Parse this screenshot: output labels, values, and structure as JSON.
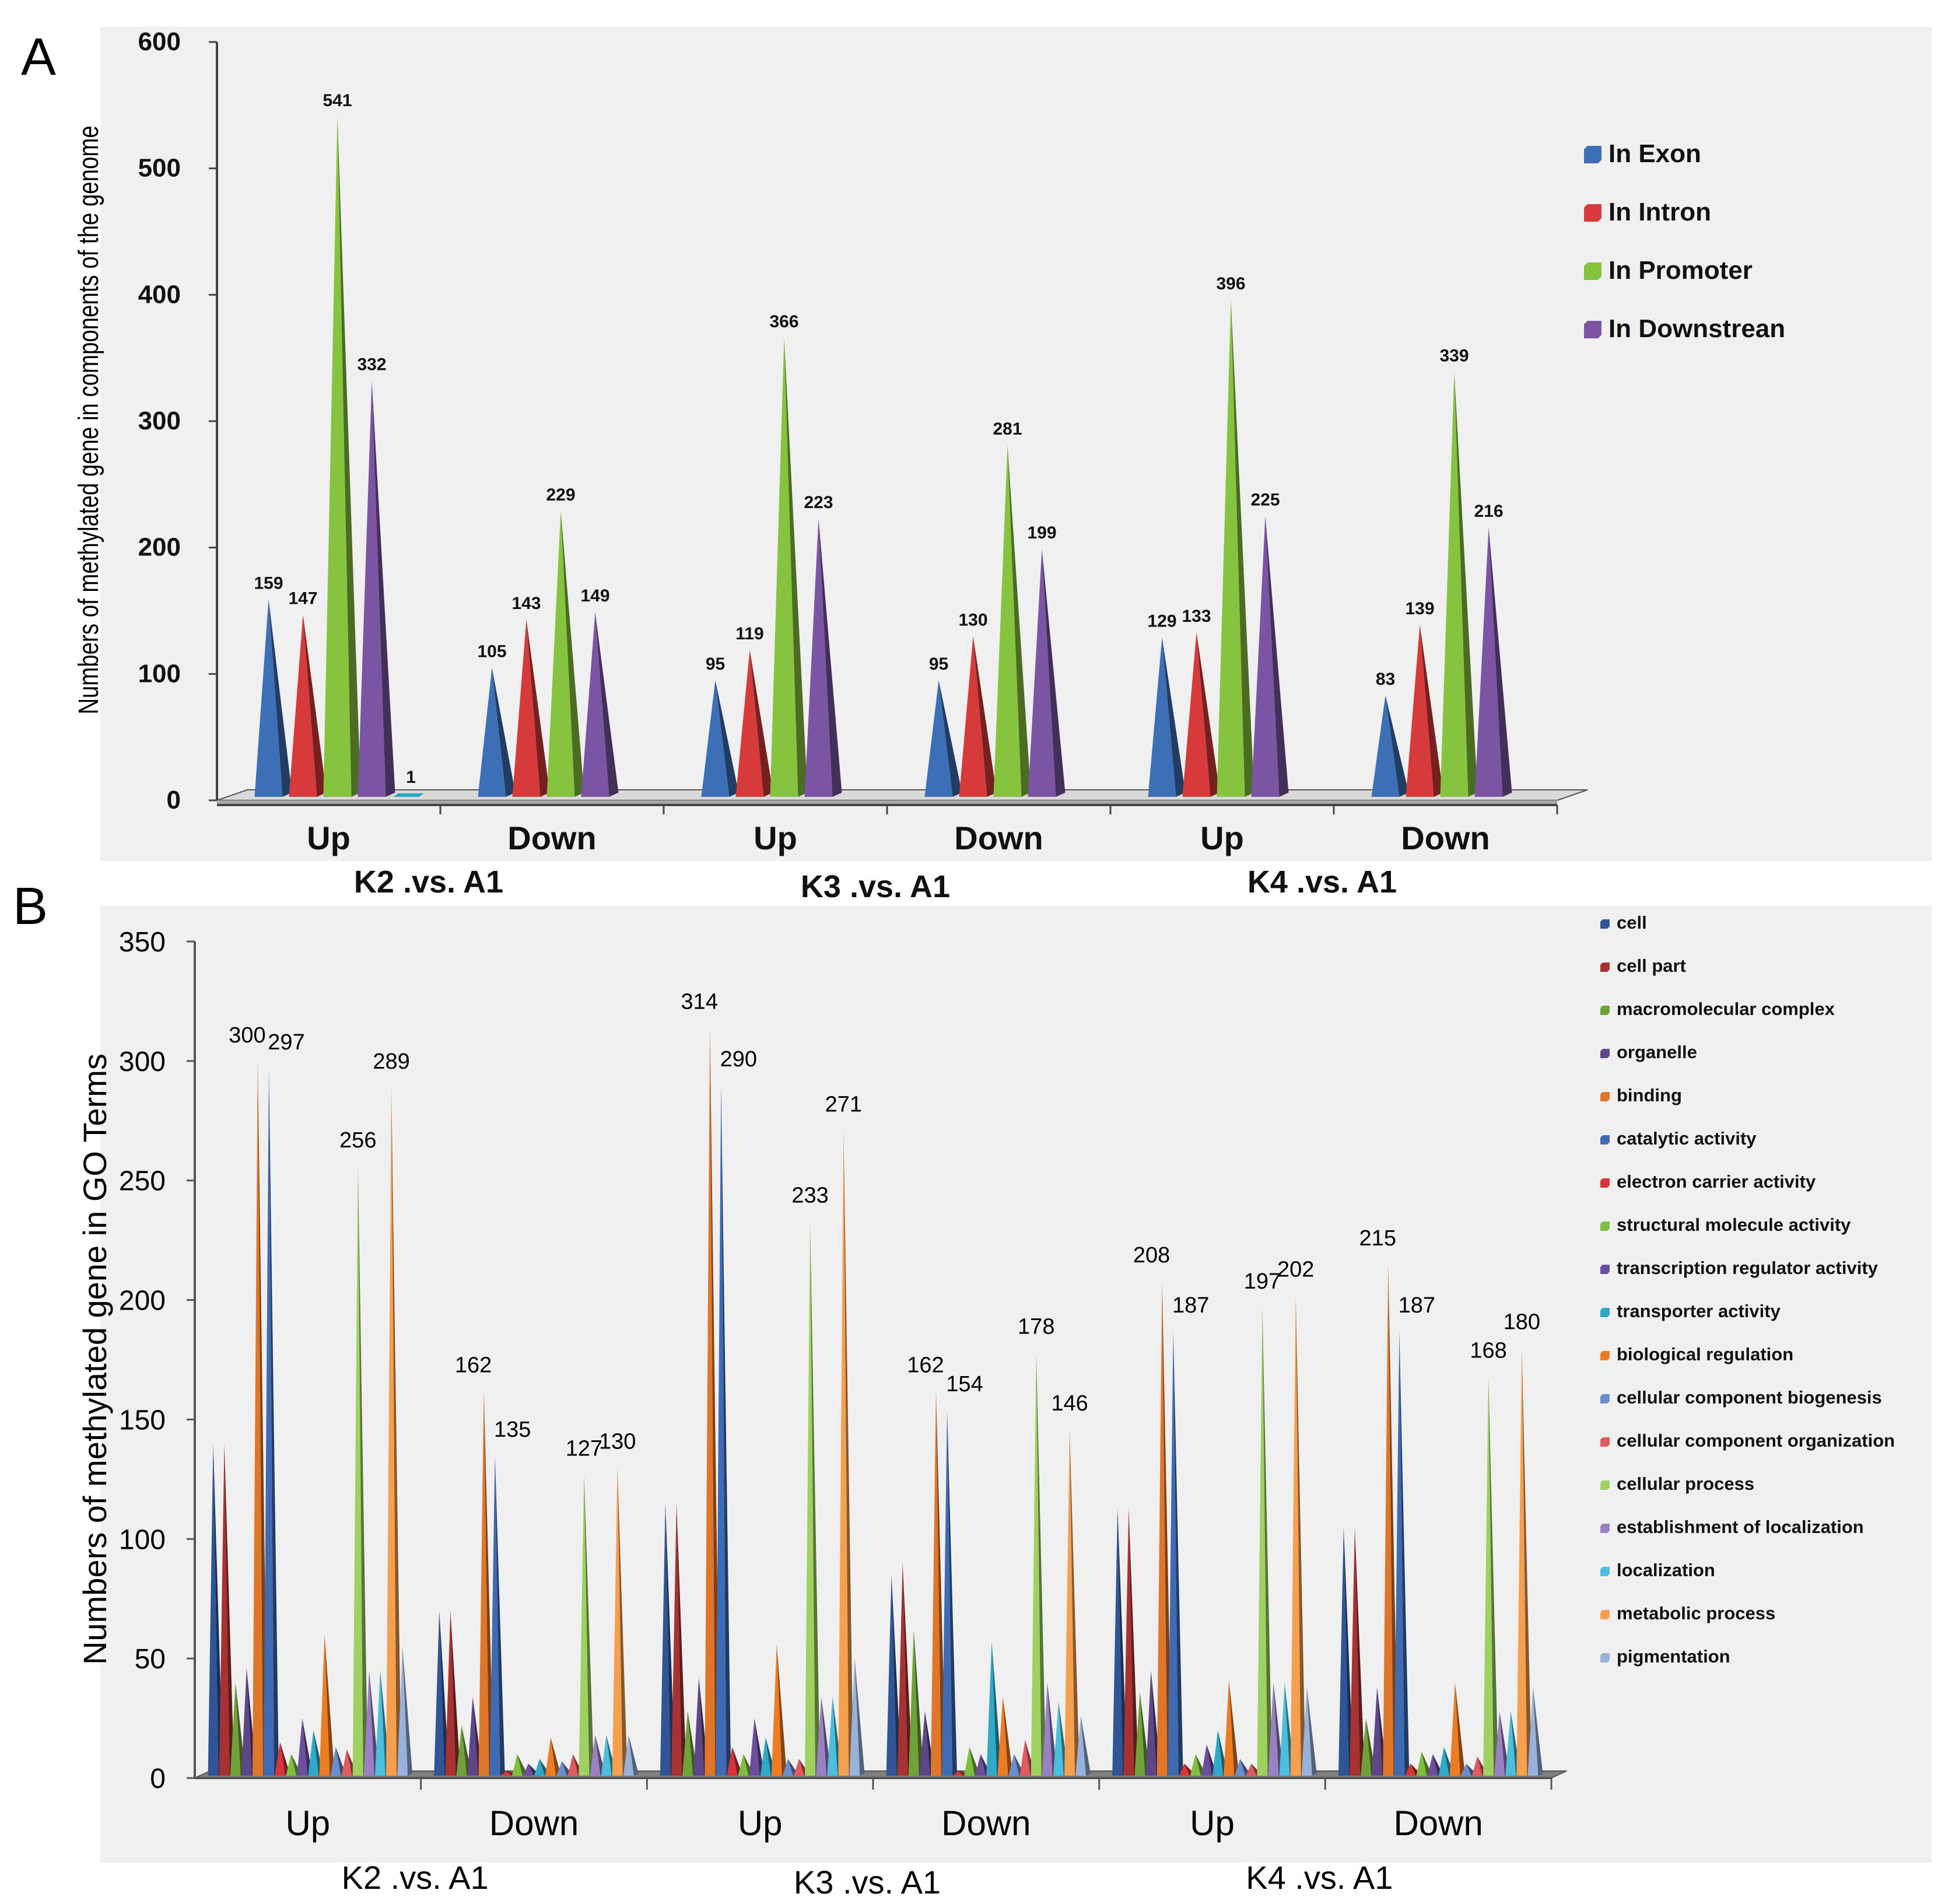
{
  "chart_data": [
    {
      "panel": "A",
      "type": "bar",
      "ylabel": "Numbers of methylated gene in components of the genome",
      "ylim": [
        0,
        600
      ],
      "yticks": [
        "0",
        "100",
        "200",
        "300",
        "400",
        "500",
        "600"
      ],
      "categories": [
        "Up",
        "Down",
        "Up",
        "Down",
        "Up",
        "Down"
      ],
      "groups": [
        "K2 .vs. A1",
        "K3 .vs. A1",
        "K4 .vs. A1"
      ],
      "legend_position": "right",
      "series": [
        {
          "name": "In Exon",
          "color": "#3d6fb6",
          "values": [
            159,
            105,
            95,
            95,
            129,
            83
          ]
        },
        {
          "name": " In Intron",
          "color": "#d63a3a",
          "values": [
            147,
            143,
            119,
            130,
            133,
            139
          ]
        },
        {
          "name": "In Promoter",
          "color": "#86c440",
          "values": [
            541,
            229,
            366,
            281,
            396,
            339
          ]
        },
        {
          "name": " In Downstrean",
          "color": "#7b55a3",
          "values": [
            332,
            149,
            223,
            199,
            225,
            216
          ]
        }
      ],
      "extra_bar": {
        "value": 1,
        "label": "1",
        "color": "#2aa6c6"
      },
      "value_labels": [
        [
          "159",
          "147",
          "541",
          "332"
        ],
        [
          "105",
          "143",
          "229",
          "149"
        ],
        [
          "95",
          "119",
          "366",
          "223"
        ],
        [
          "95",
          "130",
          "281",
          "199"
        ],
        [
          "129",
          "133",
          "396",
          "225"
        ],
        [
          "83",
          "139",
          "339",
          "216"
        ]
      ]
    },
    {
      "panel": "B",
      "type": "bar",
      "ylabel": "Numbers of methylated gene in GO Terms",
      "ylim": [
        0,
        350
      ],
      "yticks": [
        "0",
        "50",
        "100",
        "150",
        "200",
        "250",
        "300",
        "350"
      ],
      "categories": [
        "Up",
        "Down",
        "Up",
        "Down",
        "Up",
        "Down"
      ],
      "groups": [
        "K2 .vs. A1",
        "K3 .vs. A1",
        "K4 .vs. A1"
      ],
      "legend_position": "right",
      "legend": [
        {
          "name": "cell",
          "color": "#2f5597"
        },
        {
          "name": "cell part",
          "color": "#a83232"
        },
        {
          "name": "macromolecular complex",
          "color": "#6fa33a"
        },
        {
          "name": "organelle",
          "color": "#5e4689"
        },
        {
          "name": "binding",
          "color": "#e0762a"
        },
        {
          "name": "catalytic activity",
          "color": "#3e6bb4"
        },
        {
          "name": "electron carrier activity",
          "color": "#d8353a"
        },
        {
          "name": "structural molecule activity",
          "color": "#7fbf3f"
        },
        {
          "name": "transcription regulator activity",
          "color": "#6b4e9e"
        },
        {
          "name": "transporter activity",
          "color": "#2fa9c8"
        },
        {
          "name": "biological regulation",
          "color": "#ee7d22"
        },
        {
          "name": "cellular component biogenesis",
          "color": "#6b8ecf"
        },
        {
          "name": "cellular component organization",
          "color": "#e05a5e"
        },
        {
          "name": "cellular process",
          "color": "#9fd162"
        },
        {
          "name": "establishment of localization",
          "color": "#9a80c4"
        },
        {
          "name": "localization",
          "color": "#4cbfdc"
        },
        {
          "name": "metabolic process",
          "color": "#f5a04e"
        },
        {
          "name": "pigmentation",
          "color": "#98b2dc"
        }
      ],
      "values": [
        [
          140,
          140,
          40,
          46,
          300,
          297,
          15,
          10,
          25,
          20,
          60,
          13,
          12,
          256,
          45,
          45,
          289,
          55
        ],
        [
          70,
          70,
          22,
          34,
          162,
          135,
          3,
          10,
          6,
          8,
          17,
          7,
          10,
          127,
          18,
          18,
          130,
          18
        ],
        [
          115,
          115,
          28,
          42,
          314,
          290,
          13,
          10,
          25,
          17,
          56,
          8,
          8,
          233,
          34,
          34,
          271,
          50
        ],
        [
          85,
          90,
          62,
          28,
          162,
          154,
          3,
          13,
          10,
          57,
          34,
          10,
          16,
          178,
          40,
          32,
          146,
          26
        ],
        [
          113,
          113,
          36,
          45,
          208,
          187,
          6,
          10,
          14,
          20,
          41,
          8,
          6,
          197,
          40,
          40,
          202,
          38
        ],
        [
          105,
          105,
          25,
          38,
          215,
          187,
          6,
          11,
          10,
          13,
          40,
          6,
          9,
          168,
          28,
          28,
          180,
          38
        ]
      ],
      "value_labels": [
        {
          "cat": 0,
          "series": 4,
          "text": "300"
        },
        {
          "cat": 0,
          "series": 5,
          "text": "297"
        },
        {
          "cat": 0,
          "series": 13,
          "text": "256"
        },
        {
          "cat": 0,
          "series": 16,
          "text": "289"
        },
        {
          "cat": 1,
          "series": 4,
          "text": "162"
        },
        {
          "cat": 1,
          "series": 5,
          "text": "135"
        },
        {
          "cat": 1,
          "series": 13,
          "text": "127"
        },
        {
          "cat": 1,
          "series": 16,
          "text": "130"
        },
        {
          "cat": 2,
          "series": 4,
          "text": "314"
        },
        {
          "cat": 2,
          "series": 5,
          "text": "290"
        },
        {
          "cat": 2,
          "series": 13,
          "text": "233"
        },
        {
          "cat": 2,
          "series": 16,
          "text": "271"
        },
        {
          "cat": 3,
          "series": 4,
          "text": "162"
        },
        {
          "cat": 3,
          "series": 5,
          "text": "154"
        },
        {
          "cat": 3,
          "series": 13,
          "text": "178"
        },
        {
          "cat": 3,
          "series": 16,
          "text": "146"
        },
        {
          "cat": 4,
          "series": 4,
          "text": "208"
        },
        {
          "cat": 4,
          "series": 5,
          "text": "187"
        },
        {
          "cat": 4,
          "series": 13,
          "text": "197"
        },
        {
          "cat": 4,
          "series": 16,
          "text": "202"
        },
        {
          "cat": 5,
          "series": 4,
          "text": "215"
        },
        {
          "cat": 5,
          "series": 5,
          "text": "187"
        },
        {
          "cat": 5,
          "series": 13,
          "text": "168"
        },
        {
          "cat": 5,
          "series": 16,
          "text": "180"
        }
      ]
    }
  ],
  "panel_labels": {
    "a": "A",
    "b": "B"
  }
}
